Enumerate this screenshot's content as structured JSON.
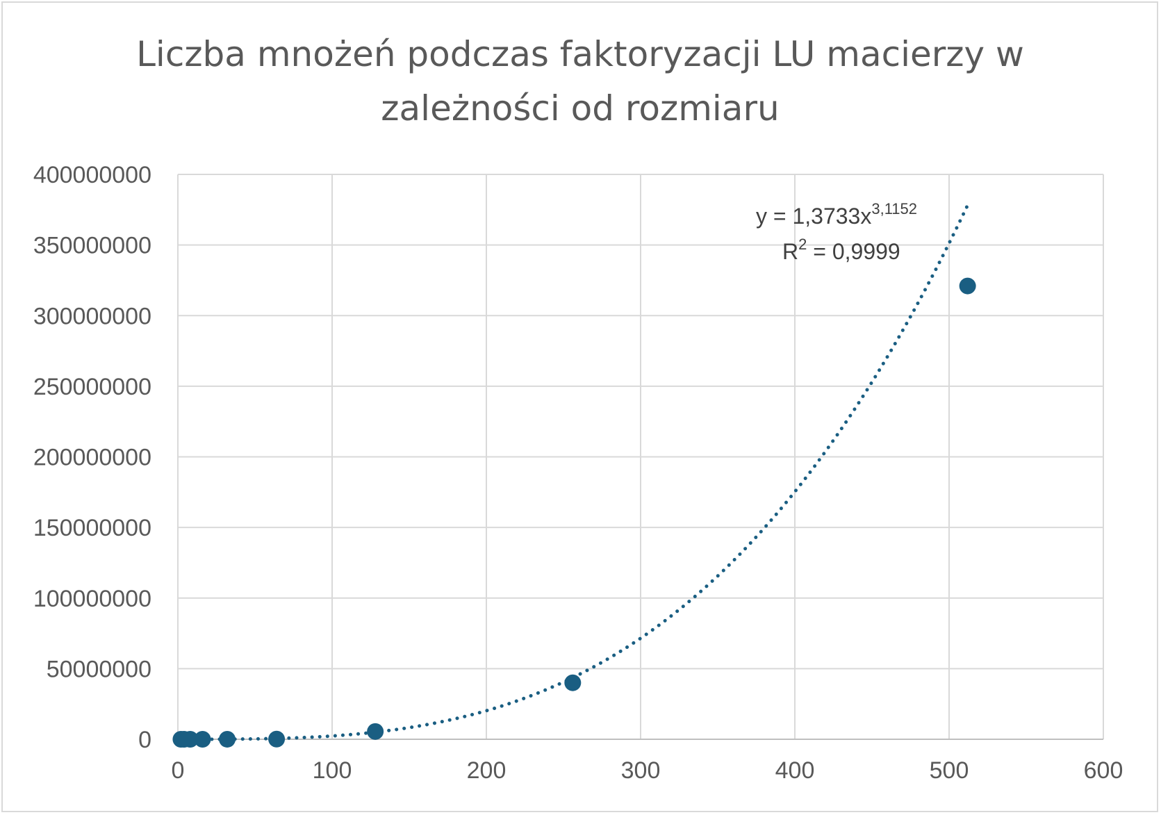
{
  "chart_data": {
    "type": "scatter",
    "title_lines": [
      "Liczba mnożeń podczas faktoryzacji LU macierzy w",
      "zależności od rozmiaru"
    ],
    "xlabel": "",
    "ylabel": "",
    "xlim": [
      0,
      600
    ],
    "ylim": [
      0,
      400000000
    ],
    "x_ticks": [
      0,
      100,
      200,
      300,
      400,
      500,
      600
    ],
    "y_ticks": [
      0,
      50000000,
      100000000,
      150000000,
      200000000,
      250000000,
      300000000,
      350000000,
      400000000
    ],
    "x_tick_labels": [
      "0",
      "100",
      "200",
      "300",
      "400",
      "500",
      "600"
    ],
    "y_tick_labels": [
      "0",
      "50000000",
      "100000000",
      "150000000",
      "200000000",
      "250000000",
      "300000000",
      "350000000",
      "400000000"
    ],
    "grid": true,
    "series": [
      {
        "x": [
          2,
          4,
          8,
          16,
          32,
          64,
          128,
          256,
          512
        ],
        "y": [
          4,
          30,
          240,
          1900,
          15000,
          120000,
          5500000,
          40000000,
          321000000
        ],
        "color": "#1a5e82"
      }
    ],
    "trendline": {
      "type": "power",
      "coefficient": 1.3733,
      "exponent": 3.1152,
      "equation_label": "y = 1,3733x",
      "equation_exponent": "3,1152",
      "r2_label": "R",
      "r2_superscript": "2",
      "r2_value": " = 0,9999",
      "color": "#1a5e82"
    }
  }
}
